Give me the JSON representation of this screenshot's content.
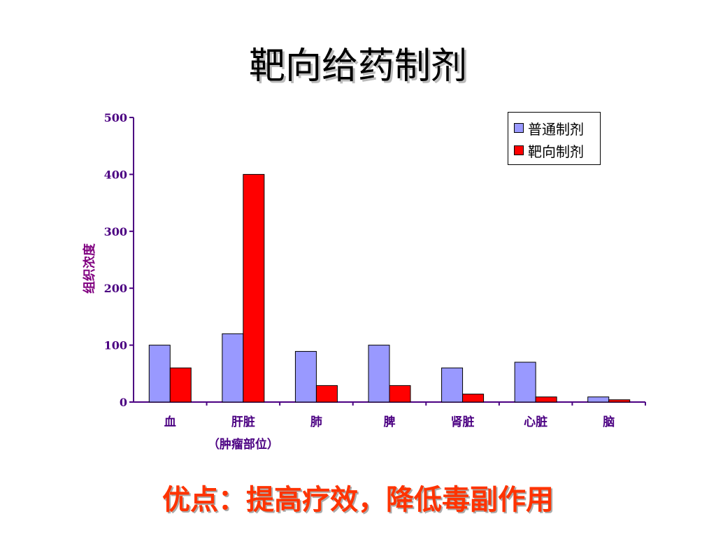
{
  "slide": {
    "title": "靶向给药制剂",
    "footer": "优点：提高疗效，降低毒副作用"
  },
  "colors": {
    "series_normal": "#9999ff",
    "series_targeted": "#ff0000",
    "axis": "#4b0082",
    "footer": "#ff3300"
  },
  "chart_data": {
    "type": "bar",
    "title": "",
    "ylabel": "组织浓度",
    "xlabel": "",
    "ylim": [
      0,
      500
    ],
    "yticks": [
      0,
      100,
      200,
      300,
      400,
      500
    ],
    "categories": [
      "血",
      "肝脏",
      "肺",
      "脾",
      "肾脏",
      "心脏",
      "脑"
    ],
    "category_sublabels": [
      "",
      "（肿瘤部位）",
      "",
      "",
      "",
      "",
      ""
    ],
    "series": [
      {
        "name": "普通制剂",
        "values": [
          100,
          120,
          89,
          100,
          60,
          70,
          9
        ]
      },
      {
        "name": "靶向制剂",
        "values": [
          60,
          400,
          29,
          29,
          14,
          9,
          4
        ]
      }
    ],
    "legend_position": "top-right",
    "grid": false
  }
}
